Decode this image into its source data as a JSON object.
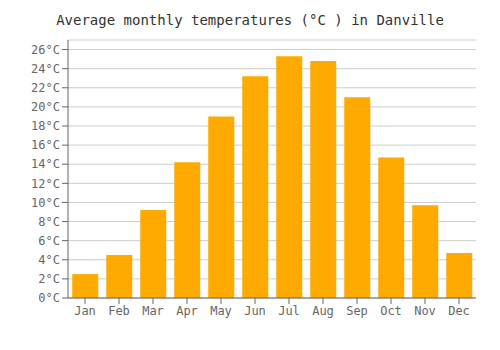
{
  "chart_data": {
    "type": "bar",
    "title": "Average monthly temperatures (°C ) in Danville",
    "categories": [
      "Jan",
      "Feb",
      "Mar",
      "Apr",
      "May",
      "Jun",
      "Jul",
      "Aug",
      "Sep",
      "Oct",
      "Nov",
      "Dec"
    ],
    "values": [
      2.5,
      4.5,
      9.2,
      14.2,
      19.0,
      23.2,
      25.3,
      24.8,
      21.0,
      14.7,
      9.7,
      4.7
    ],
    "color": "#FFAA00",
    "ylim": [
      0,
      27
    ],
    "yticks": [
      {
        "value": 0,
        "label": "0°C"
      },
      {
        "value": 2,
        "label": "2°C"
      },
      {
        "value": 4,
        "label": "4°C"
      },
      {
        "value": 6,
        "label": "6°C"
      },
      {
        "value": 8,
        "label": "8°C"
      },
      {
        "value": 10,
        "label": "10°C"
      },
      {
        "value": 12,
        "label": "12°C"
      },
      {
        "value": 14,
        "label": "14°C"
      },
      {
        "value": 16,
        "label": "16°C"
      },
      {
        "value": 18,
        "label": "18°C"
      },
      {
        "value": 20,
        "label": "20°C"
      },
      {
        "value": 22,
        "label": "22°C"
      },
      {
        "value": 24,
        "label": "24°C"
      },
      {
        "value": 26,
        "label": "26°C"
      }
    ],
    "grid": true
  }
}
